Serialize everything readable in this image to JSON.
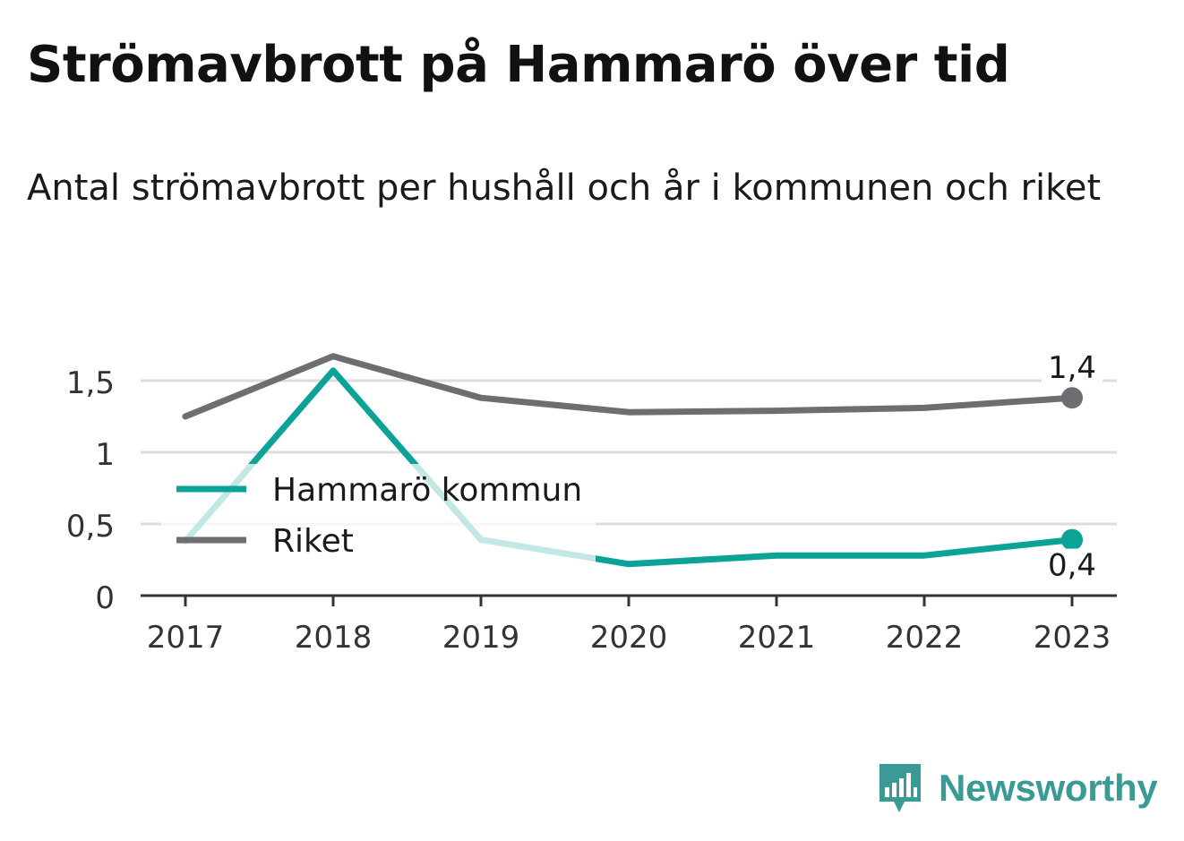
{
  "title": "Strömavbrott på Hammarö över tid",
  "subtitle": "Antal strömavbrott per hushåll och år i kommunen och riket",
  "brand": {
    "name": "Newsworthy",
    "icon": "newsworthy-logo-icon",
    "color": "#3a9a95"
  },
  "chart_data": {
    "type": "line",
    "x": [
      "2017",
      "2018",
      "2019",
      "2020",
      "2021",
      "2022",
      "2023"
    ],
    "yticks": [
      {
        "value": 0,
        "label": "0"
      },
      {
        "value": 0.5,
        "label": "0,5"
      },
      {
        "value": 1,
        "label": "1"
      },
      {
        "value": 1.5,
        "label": "1,5"
      }
    ],
    "ylim": [
      0,
      1.5
    ],
    "grid": true,
    "legend": "center-left",
    "series": [
      {
        "name": "Hammarö kommun",
        "color": "#0ba297",
        "values": [
          0.38,
          1.57,
          0.39,
          0.22,
          0.28,
          0.28,
          0.39
        ],
        "end_label": "0,4"
      },
      {
        "name": "Riket",
        "color": "#6e6d72",
        "values": [
          1.25,
          1.67,
          1.38,
          1.28,
          1.29,
          1.31,
          1.38
        ],
        "end_label": "1,4"
      }
    ]
  }
}
